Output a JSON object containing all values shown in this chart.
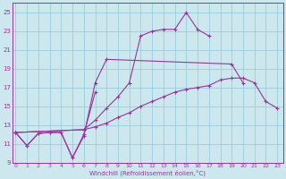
{
  "xlabel": "Windchill (Refroidissement éolien,°C)",
  "bg_color": "#cce8ee",
  "line_color": "#993399",
  "grid_color": "#99ccdd",
  "x_ticks": [
    0,
    1,
    2,
    3,
    4,
    5,
    6,
    7,
    8,
    9,
    10,
    11,
    12,
    13,
    14,
    15,
    16,
    17,
    18,
    19,
    20,
    21,
    22,
    23
  ],
  "y_ticks": [
    9,
    11,
    13,
    15,
    17,
    19,
    21,
    23,
    25
  ],
  "xlim": [
    -0.3,
    23.5
  ],
  "ylim": [
    9.0,
    26.0
  ],
  "series": [
    {
      "x": [
        0,
        1,
        2,
        3,
        4,
        5,
        6,
        7,
        8,
        19,
        20
      ],
      "y": [
        12.2,
        10.8,
        12.1,
        12.2,
        12.2,
        9.5,
        11.8,
        17.5,
        20.0,
        19.5,
        17.5
      ]
    },
    {
      "x": [
        0,
        1,
        2,
        3,
        4,
        5,
        6,
        7
      ],
      "y": [
        12.2,
        10.8,
        12.1,
        12.2,
        12.2,
        9.5,
        12.0,
        16.5
      ]
    },
    {
      "x": [
        0,
        6,
        7,
        8,
        9,
        10,
        11,
        12,
        13,
        14,
        15,
        16,
        17
      ],
      "y": [
        12.2,
        12.5,
        13.5,
        14.8,
        16.0,
        17.5,
        22.5,
        23.0,
        23.2,
        23.2,
        25.0,
        23.2,
        22.5
      ]
    },
    {
      "x": [
        0,
        6,
        7,
        8,
        9,
        10,
        11,
        12,
        13,
        14,
        15,
        16,
        17,
        18,
        19,
        20,
        21,
        22,
        23
      ],
      "y": [
        12.2,
        12.5,
        12.8,
        13.2,
        13.8,
        14.3,
        15.0,
        15.5,
        16.0,
        16.5,
        16.8,
        17.0,
        17.2,
        17.8,
        18.0,
        18.0,
        17.5,
        15.5,
        14.8
      ]
    }
  ]
}
